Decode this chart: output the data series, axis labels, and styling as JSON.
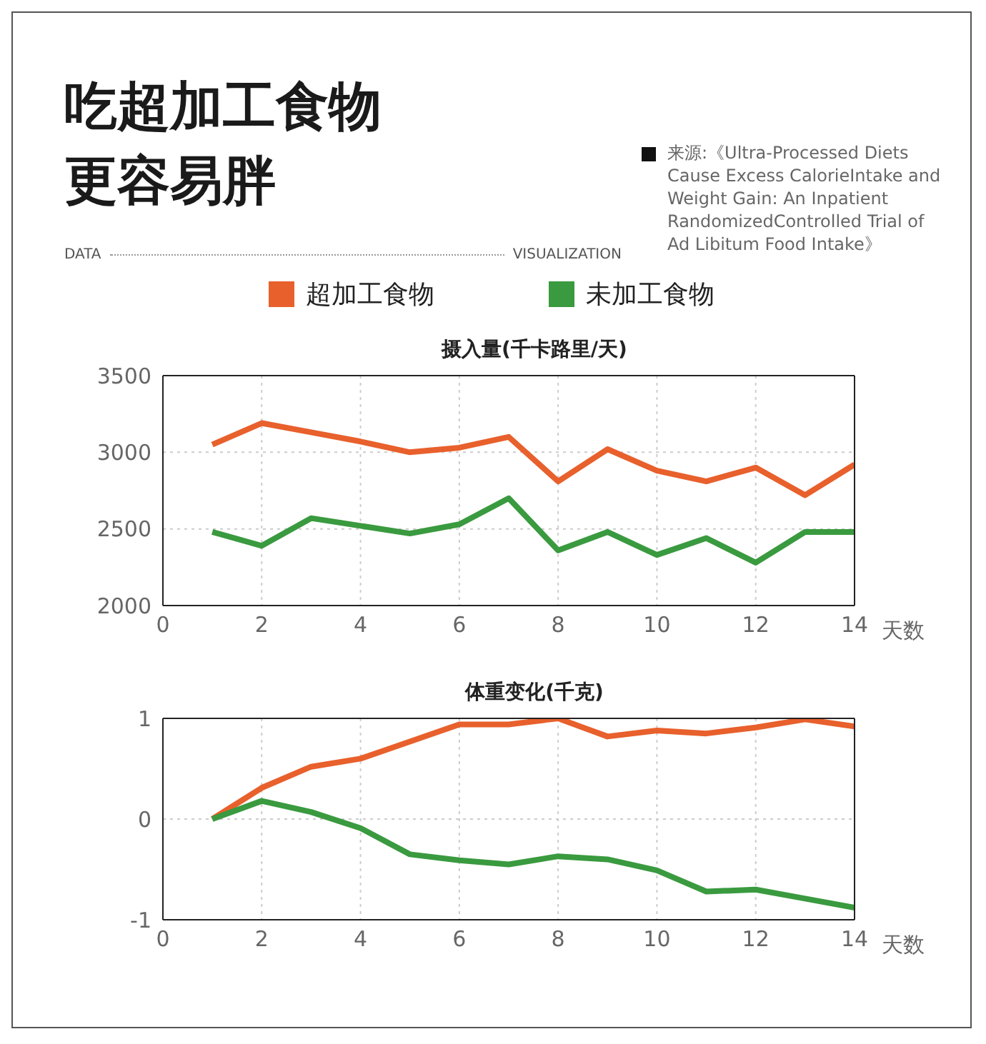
{
  "chart_data": [
    {
      "type": "line",
      "title": "吃超加工食物更容易胖",
      "subtitle": "摄入量(千卡路里/天)",
      "annotations": [
        "DATA",
        "VISUALIZATION",
        "来源:《Ultra-Processed Diets Cause Excess CalorieIntake and Weight Gain: An Inpatient RandomizedControlled Trial of Ad Libitum Food Intake》"
      ],
      "xlabel": "天数",
      "x": [
        1,
        2,
        3,
        4,
        5,
        6,
        7,
        8,
        9,
        10,
        11,
        12,
        13,
        14
      ],
      "series": [
        {
          "name": "超加工食物",
          "color": "#e8602c",
          "values": [
            3050,
            3190,
            3130,
            3070,
            3000,
            3030,
            3100,
            2810,
            3020,
            2880,
            2810,
            2900,
            2720,
            2920
          ]
        },
        {
          "name": "未加工食物",
          "color": "#3a9a3f",
          "values": [
            2480,
            2390,
            2570,
            2520,
            2470,
            2530,
            2700,
            2360,
            2480,
            2330,
            2440,
            2280,
            2480,
            2480
          ]
        }
      ],
      "xlim": [
        0,
        14
      ],
      "xticks": [
        0,
        2,
        4,
        6,
        8,
        10,
        12,
        14
      ],
      "ylim": [
        2000,
        3500
      ],
      "yticks": [
        2000,
        2500,
        3000,
        3500
      ],
      "grid": true,
      "legend": "top",
      "marker": "none",
      "line_style": "solid"
    },
    {
      "type": "line",
      "title": "体重变化(千克)",
      "xlabel": "天数",
      "x": [
        1,
        2,
        3,
        4,
        5,
        6,
        7,
        8,
        9,
        10,
        11,
        12,
        13,
        14
      ],
      "series": [
        {
          "color": "#e8602c",
          "values": [
            0,
            0.31,
            0.52,
            0.6,
            0.77,
            0.94,
            0.94,
            1,
            0.82,
            0.88,
            0.85,
            0.91,
            0.99,
            0.92
          ]
        },
        {
          "color": "#3a9a3f",
          "values": [
            0,
            0.18,
            0.07,
            -0.09,
            -0.35,
            -0.41,
            -0.45,
            -0.37,
            -0.4,
            -0.51,
            -0.72,
            -0.7,
            -0.79,
            -0.88
          ]
        }
      ],
      "xlim": [
        0,
        14
      ],
      "xticks": [
        0,
        2,
        4,
        6,
        8,
        10,
        12,
        14
      ],
      "ylim": [
        -1,
        1
      ],
      "yticks": [
        -1,
        0,
        1
      ],
      "grid": true,
      "marker": "none",
      "line_style": "solid"
    }
  ]
}
